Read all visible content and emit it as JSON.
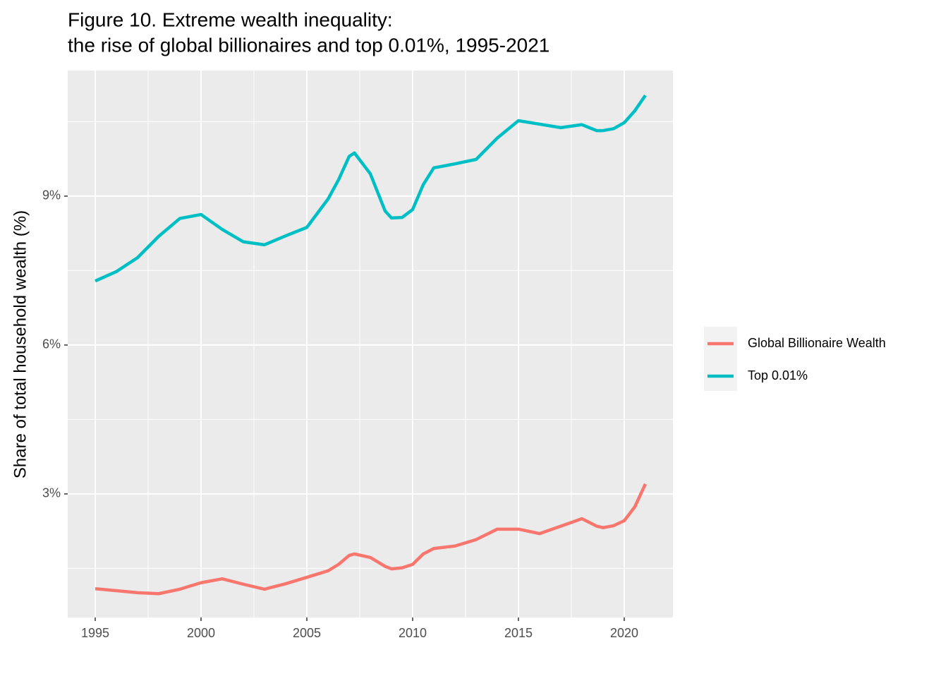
{
  "chart_data": {
    "type": "line",
    "title": [
      "Figure 10. Extreme wealth inequality:",
      "the rise of global billionaires and top 0.01%, 1995-2021"
    ],
    "y_label": "Share of total household wealth (%)",
    "x": [
      1995,
      1996,
      1997,
      1998,
      1999,
      2000,
      2001,
      2002,
      2003,
      2004,
      2005,
      2006,
      2006.5,
      2007,
      2007.25,
      2008,
      2008.7,
      2009,
      2009.5,
      2010,
      2010.5,
      2011,
      2012,
      2013,
      2014,
      2015,
      2016,
      2017,
      2018,
      2018.7,
      2019,
      2019.5,
      2020,
      2020.5,
      2021
    ],
    "series": [
      {
        "name": "Global Billionaire Wealth",
        "color": "#F8766D",
        "values": [
          1.09,
          1.05,
          1.01,
          0.99,
          1.08,
          1.21,
          1.29,
          1.18,
          1.08,
          1.19,
          1.32,
          1.45,
          1.58,
          1.76,
          1.79,
          1.72,
          1.54,
          1.49,
          1.51,
          1.58,
          1.79,
          1.9,
          1.95,
          2.08,
          2.29,
          2.29,
          2.2,
          2.35,
          2.5,
          2.35,
          2.32,
          2.36,
          2.46,
          2.74,
          3.2
        ]
      },
      {
        "name": "Top 0.01%",
        "color": "#00BFC4",
        "values": [
          7.29,
          7.48,
          7.76,
          8.19,
          8.55,
          8.63,
          8.33,
          8.08,
          8.02,
          8.2,
          8.37,
          8.94,
          9.33,
          9.8,
          9.87,
          9.45,
          8.7,
          8.56,
          8.57,
          8.73,
          9.23,
          9.57,
          9.65,
          9.74,
          10.17,
          10.52,
          10.45,
          10.38,
          10.44,
          10.32,
          10.32,
          10.36,
          10.48,
          10.72,
          11.03
        ]
      }
    ],
    "xlim": [
      1993.7,
      2022.3
    ],
    "xticks": [
      1995,
      2000,
      2005,
      2010,
      2015,
      2020
    ],
    "x_minor_ticks": [
      1997.5,
      2002.5,
      2007.5,
      2012.5,
      2017.5
    ],
    "ylim": [
      0.51,
      11.53
    ],
    "yticks": [
      {
        "value": 3,
        "label": "3%"
      },
      {
        "value": 6,
        "label": "6%"
      },
      {
        "value": 9,
        "label": "9%"
      }
    ],
    "y_minor_ticks": [
      1.5,
      4.5,
      7.5,
      10.5
    ],
    "grid": true,
    "legend": "right"
  }
}
